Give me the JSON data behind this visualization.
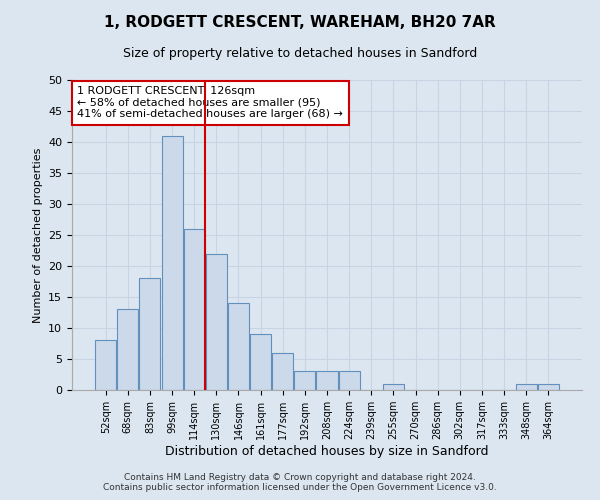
{
  "title": "1, RODGETT CRESCENT, WAREHAM, BH20 7AR",
  "subtitle": "Size of property relative to detached houses in Sandford",
  "xlabel": "Distribution of detached houses by size in Sandford",
  "ylabel": "Number of detached properties",
  "bin_labels": [
    "52sqm",
    "68sqm",
    "83sqm",
    "99sqm",
    "114sqm",
    "130sqm",
    "146sqm",
    "161sqm",
    "177sqm",
    "192sqm",
    "208sqm",
    "224sqm",
    "239sqm",
    "255sqm",
    "270sqm",
    "286sqm",
    "302sqm",
    "317sqm",
    "333sqm",
    "348sqm",
    "364sqm"
  ],
  "bar_values": [
    8,
    13,
    18,
    41,
    26,
    22,
    14,
    9,
    6,
    3,
    3,
    3,
    0,
    1,
    0,
    0,
    0,
    0,
    0,
    1,
    1
  ],
  "bar_color": "#ccd9ea",
  "bar_edgecolor": "#6090bb",
  "vline_bin_index": 4.5,
  "annotation_text": "1 RODGETT CRESCENT: 126sqm\n← 58% of detached houses are smaller (95)\n41% of semi-detached houses are larger (68) →",
  "annotation_box_color": "#ffffff",
  "annotation_box_edgecolor": "#cc0000",
  "vline_color": "#cc0000",
  "grid_color": "#c8d4e4",
  "background_color": "#dce6f0",
  "fig_background": "#dce6f0",
  "ylim": [
    0,
    50
  ],
  "yticks": [
    0,
    5,
    10,
    15,
    20,
    25,
    30,
    35,
    40,
    45,
    50
  ],
  "footer_line1": "Contains HM Land Registry data © Crown copyright and database right 2024.",
  "footer_line2": "Contains public sector information licensed under the Open Government Licence v3.0."
}
